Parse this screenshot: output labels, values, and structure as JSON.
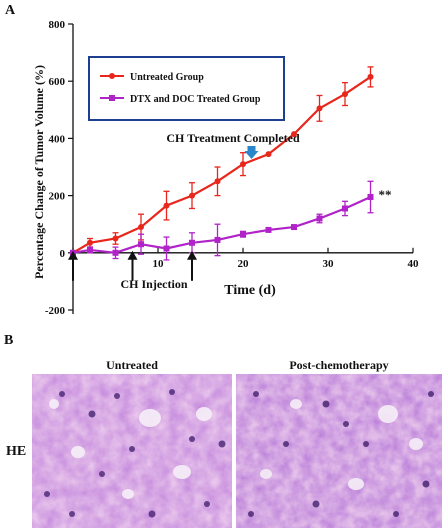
{
  "panel_a": {
    "label": "A"
  },
  "panel_b": {
    "label": "B",
    "row_label": "HE",
    "images": [
      {
        "title": "Untreated"
      },
      {
        "title": "Post-chemotherapy"
      }
    ]
  },
  "chart_data": {
    "type": "line",
    "xlabel": "Time (d)",
    "ylabel": "Percentage Change of Tumor Volume (%)",
    "xlim": [
      0,
      40
    ],
    "ylim": [
      -200,
      800
    ],
    "xticks": [
      0,
      10,
      20,
      30,
      40
    ],
    "yticks": [
      -200,
      0,
      200,
      400,
      600,
      800
    ],
    "grid": false,
    "legend_position": "top-left",
    "series": [
      {
        "name": "Untreated Group",
        "color": "#e8261c",
        "marker": "circle",
        "x": [
          0,
          2,
          5,
          8,
          11,
          14,
          17,
          20,
          23,
          26,
          29,
          32,
          35
        ],
        "y": [
          0,
          35,
          50,
          90,
          165,
          200,
          250,
          310,
          345,
          415,
          505,
          555,
          615
        ],
        "err": [
          0,
          15,
          20,
          45,
          50,
          45,
          50,
          40,
          0,
          0,
          45,
          40,
          35
        ]
      },
      {
        "name": "DTX and DOC Treated Group",
        "color": "#b023c8",
        "marker": "square",
        "x": [
          0,
          2,
          5,
          8,
          11,
          14,
          17,
          20,
          23,
          26,
          29,
          32,
          35
        ],
        "y": [
          0,
          10,
          0,
          30,
          15,
          35,
          45,
          65,
          80,
          90,
          120,
          155,
          195
        ],
        "err": [
          0,
          10,
          20,
          35,
          40,
          35,
          55,
          10,
          0,
          0,
          15,
          25,
          55
        ]
      }
    ],
    "annotations": [
      {
        "text": "CH Treatment Completed",
        "arrow_x": 21
      },
      {
        "text": "CH Injection",
        "arrow_x": [
          0,
          7,
          14
        ]
      },
      {
        "text": "**",
        "x": 35,
        "y": 195
      }
    ]
  }
}
